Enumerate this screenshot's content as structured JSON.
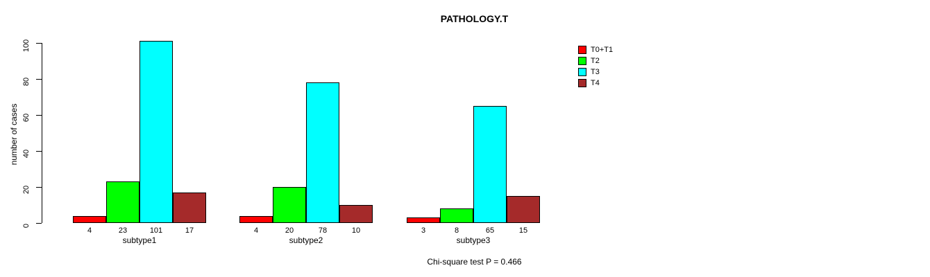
{
  "chart_data": {
    "type": "bar",
    "title": "PATHOLOGY.T",
    "ylabel": "number of cases",
    "xlabel": "",
    "ylim": [
      0,
      100
    ],
    "yticks": [
      0,
      20,
      40,
      60,
      80,
      100
    ],
    "categories": [
      "subtype1",
      "subtype2",
      "subtype3"
    ],
    "series": [
      {
        "name": "T0+T1",
        "color": "#FF0000",
        "values": [
          4,
          4,
          3
        ]
      },
      {
        "name": "T2",
        "color": "#00FF00",
        "values": [
          23,
          20,
          8
        ]
      },
      {
        "name": "T3",
        "color": "#00FFFF",
        "values": [
          101,
          78,
          65
        ]
      },
      {
        "name": "T4",
        "color": "#A52A2A",
        "values": [
          17,
          10,
          15
        ]
      }
    ],
    "bar_value_labels": true,
    "annotation": "Chi-square test P = 0.466",
    "legend_position": "right",
    "grid": false,
    "background": "#FFFFFF"
  }
}
